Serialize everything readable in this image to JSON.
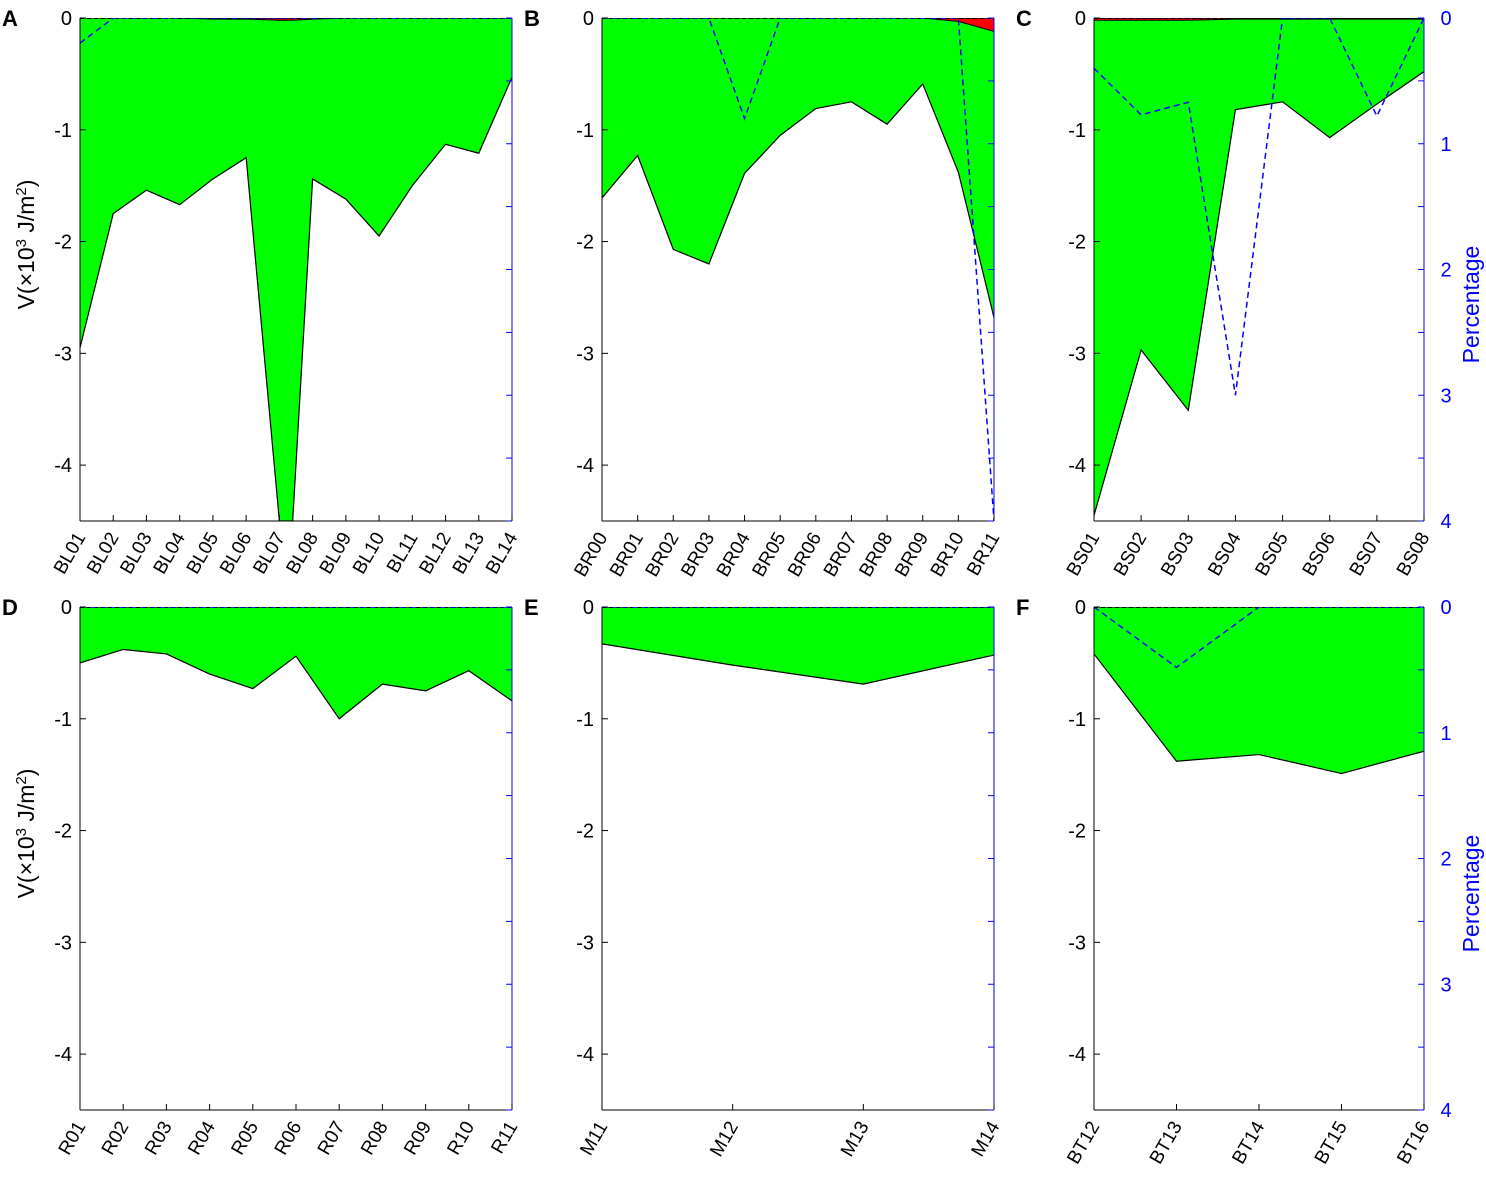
{
  "colors": {
    "fill_main": "#00ff00",
    "fill_small": "#ff0000",
    "outline": "#000000",
    "percentage_line": "#0000ff",
    "right_axis": "#0000ff"
  },
  "ylabel_prefix": "V(×10",
  "ylabel_exp1": "3",
  "ylabel_mid": " J/m",
  "ylabel_exp2": "2",
  "ylabel_suffix": ")",
  "ylabel_right": "Percentage",
  "chart_data": [
    {
      "panel": "A",
      "type": "area",
      "categories": [
        "BL01",
        "BL02",
        "BL03",
        "BL04",
        "BL05",
        "BL06",
        "BL07",
        "BL08",
        "BL09",
        "BL10",
        "BL11",
        "BL12",
        "BL13",
        "BL14"
      ],
      "x_positions": [
        1,
        2,
        3,
        4,
        5,
        6,
        7,
        7.4,
        8,
        9,
        10,
        11,
        12,
        13,
        14
      ],
      "series_main": [
        -2.95,
        -1.75,
        -1.54,
        -1.67,
        -1.44,
        -1.25,
        -4.5,
        -4.5,
        -1.44,
        -1.62,
        -1.95,
        -1.5,
        -1.13,
        -1.21,
        -0.53
      ],
      "series_small": [
        0,
        0,
        0,
        0,
        -0.01,
        -0.01,
        -0.02,
        -0.02,
        -0.01,
        0,
        0,
        0,
        0,
        0,
        0
      ],
      "percentage": [
        0.2,
        0,
        0,
        0,
        0,
        0,
        0,
        0,
        0,
        0,
        0,
        0,
        0,
        0,
        0
      ],
      "ylim": [
        -4.5,
        0
      ],
      "yticks": [
        0,
        -1,
        -2,
        -3,
        -4
      ],
      "right_axis_ticks": false,
      "show_ylabel": true,
      "show_right_label": false
    },
    {
      "panel": "B",
      "type": "area",
      "categories": [
        "BR00",
        "BR01",
        "BR02",
        "BR03",
        "BR04",
        "BR05",
        "BR06",
        "BR07",
        "BR08",
        "BR09",
        "BR10",
        "BR11"
      ],
      "x_positions": [
        1,
        2,
        3,
        4,
        5,
        6,
        7,
        8,
        9,
        10,
        11,
        12
      ],
      "series_main": [
        -1.61,
        -1.23,
        -2.07,
        -2.2,
        -1.39,
        -1.05,
        -0.81,
        -0.75,
        -0.95,
        -0.59,
        -1.38,
        -2.68
      ],
      "series_small": [
        0,
        0,
        0,
        0,
        0,
        0,
        0,
        0,
        0,
        0,
        -0.03,
        -0.12
      ],
      "percentage": [
        0,
        0,
        0,
        0,
        0.8,
        0,
        0,
        0,
        0,
        0,
        0,
        4
      ],
      "ylim": [
        -4.5,
        0
      ],
      "yticks": [
        0,
        -1,
        -2,
        -3,
        -4
      ],
      "right_axis_ticks": false,
      "show_ylabel": false,
      "show_right_label": false
    },
    {
      "panel": "C",
      "type": "area",
      "categories": [
        "BS01",
        "BS02",
        "BS03",
        "BS04",
        "BS05",
        "BS06",
        "BS07",
        "BS08"
      ],
      "x_positions": [
        1,
        2,
        3,
        4,
        5,
        6,
        7,
        8
      ],
      "series_main": [
        -4.45,
        -2.97,
        -3.51,
        -0.82,
        -0.75,
        -1.07,
        -0.77,
        -0.48
      ],
      "series_small": [
        -0.02,
        -0.02,
        -0.02,
        -0.01,
        -0.01,
        -0.01,
        -0.01,
        -0.01
      ],
      "percentage": [
        0.4,
        0.77,
        0.67,
        3,
        0,
        0,
        0.78,
        0
      ],
      "ylim": [
        -4.5,
        0
      ],
      "yticks": [
        0,
        -1,
        -2,
        -3,
        -4
      ],
      "right_ylim": [
        0,
        4
      ],
      "right_yticks": [
        0,
        1,
        2,
        3,
        4
      ],
      "right_axis_ticks": true,
      "show_ylabel": false,
      "show_right_label": true
    },
    {
      "panel": "D",
      "type": "area",
      "categories": [
        "R01",
        "R02",
        "R03",
        "R04",
        "R05",
        "R06",
        "R07",
        "R08",
        "R09",
        "R10",
        "R11"
      ],
      "x_positions": [
        1,
        2,
        3,
        4,
        5,
        6,
        7,
        8,
        9,
        10,
        11
      ],
      "series_main": [
        -0.5,
        -0.38,
        -0.42,
        -0.6,
        -0.73,
        -0.44,
        -1.0,
        -0.69,
        -0.75,
        -0.57,
        -0.84
      ],
      "series_small": [
        0,
        0,
        0,
        0,
        0,
        0,
        0,
        0,
        0,
        0,
        0
      ],
      "percentage": [
        0,
        0,
        0,
        0,
        0,
        0,
        0,
        0,
        0,
        0,
        0
      ],
      "ylim": [
        -4.5,
        0
      ],
      "yticks": [
        0,
        -1,
        -2,
        -3,
        -4
      ],
      "right_axis_ticks": false,
      "show_ylabel": true,
      "show_right_label": false
    },
    {
      "panel": "E",
      "type": "area",
      "categories": [
        "M11",
        "M12",
        "M13",
        "M14"
      ],
      "x_positions": [
        1,
        2,
        3,
        4
      ],
      "series_main": [
        -0.33,
        -0.52,
        -0.69,
        -0.43
      ],
      "series_small": [
        0,
        0,
        0,
        0
      ],
      "percentage": [
        0,
        0,
        0,
        0
      ],
      "ylim": [
        -4.5,
        0
      ],
      "yticks": [
        0,
        -1,
        -2,
        -3,
        -4
      ],
      "right_axis_ticks": false,
      "show_ylabel": false,
      "show_right_label": false
    },
    {
      "panel": "F",
      "type": "area",
      "categories": [
        "BT12",
        "BT13",
        "BT14",
        "BT15",
        "BT16"
      ],
      "x_positions": [
        1,
        2,
        3,
        4,
        5
      ],
      "series_main": [
        -0.42,
        -1.38,
        -1.32,
        -1.49,
        -1.29
      ],
      "series_small": [
        0,
        0,
        0,
        0,
        0
      ],
      "percentage": [
        0,
        0.48,
        0,
        0,
        0
      ],
      "ylim": [
        -4.5,
        0
      ],
      "yticks": [
        0,
        -1,
        -2,
        -3,
        -4
      ],
      "right_ylim": [
        0,
        4
      ],
      "right_yticks": [
        0,
        1,
        2,
        3,
        4
      ],
      "right_axis_ticks": true,
      "show_ylabel": false,
      "show_right_label": true
    }
  ]
}
